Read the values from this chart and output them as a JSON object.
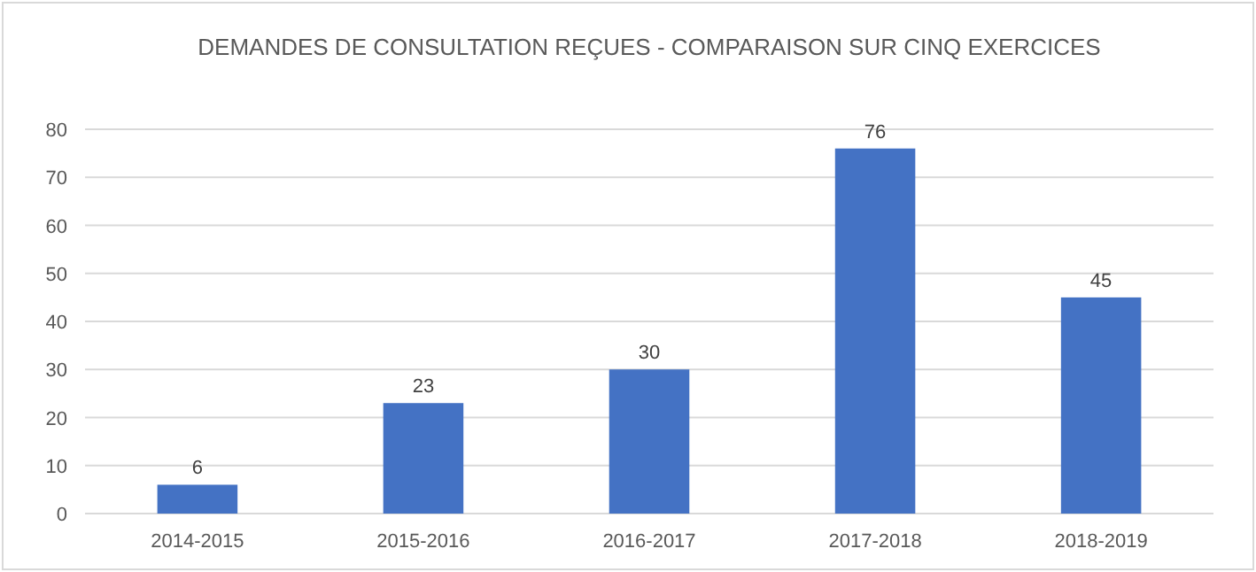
{
  "chart_data": {
    "type": "bar",
    "title": "DEMANDES DE CONSULTATION REÇUES - COMPARAISON SUR CINQ EXERCICES",
    "categories": [
      "2014-2015",
      "2015-2016",
      "2016-2017",
      "2017-2018",
      "2018-2019"
    ],
    "values": [
      6,
      23,
      30,
      76,
      45
    ],
    "color": "#4472c4",
    "ylim": [
      0,
      80
    ],
    "yticks": [
      0,
      10,
      20,
      30,
      40,
      50,
      60,
      70,
      80
    ],
    "grid": "y",
    "data_labels": true
  }
}
